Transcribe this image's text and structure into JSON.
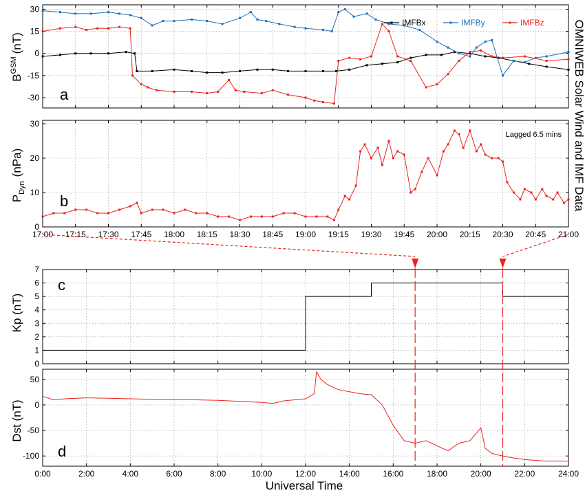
{
  "colors": {
    "black": "#000000",
    "blue": "#1f6fb8",
    "red": "#e8231d",
    "grid": "#9a9a9a"
  },
  "side_title": "OMNIWEB Solar Wind and IMF Data",
  "xlabel_bottom": "Universal Time",
  "chart_data": [
    {
      "panel": "a",
      "type": "line",
      "ylabel_main": "B",
      "ylabel_sup": "GSM",
      "ylabel_unit": "(nT)",
      "xlim": [
        "17:00",
        "21:00"
      ],
      "ylim": [
        -37,
        33
      ],
      "yticks": [
        -30,
        -15,
        0,
        15,
        30
      ],
      "xticks": [
        "17:00",
        "17:15",
        "17:30",
        "17:45",
        "18:00",
        "18:15",
        "18:30",
        "18:45",
        "19:00",
        "19:15",
        "19:30",
        "19:45",
        "20:00",
        "20:15",
        "20:30",
        "20:45",
        "21:00"
      ],
      "grid": true,
      "legend_position": "top-right",
      "series": [
        {
          "name": "IMFBx",
          "color": "#000000",
          "x": [
            "17:00",
            "17:08",
            "17:15",
            "17:22",
            "17:30",
            "17:38",
            "17:42",
            "17:43",
            "17:50",
            "18:00",
            "18:08",
            "18:15",
            "18:22",
            "18:30",
            "18:38",
            "18:45",
            "18:52",
            "19:00",
            "19:08",
            "19:14",
            "19:20",
            "19:28",
            "19:35",
            "19:42",
            "19:48",
            "19:55",
            "20:02",
            "20:08",
            "20:15",
            "20:22",
            "20:28",
            "20:35",
            "20:42",
            "20:50",
            "21:00"
          ],
          "y": [
            -2,
            -1,
            0,
            0,
            0,
            1,
            0,
            -12,
            -12,
            -11,
            -12,
            -13,
            -13,
            -12,
            -11,
            -11,
            -12,
            -12,
            -12,
            -12,
            -11,
            -8,
            -7,
            -6,
            -3,
            -1,
            -1,
            1,
            0,
            -2,
            -3,
            -5,
            -7,
            -9,
            -11
          ]
        },
        {
          "name": "IMFBy",
          "color": "#1f6fb8",
          "x": [
            "17:00",
            "17:08",
            "17:15",
            "17:22",
            "17:30",
            "17:35",
            "17:40",
            "17:45",
            "17:50",
            "17:55",
            "18:00",
            "18:08",
            "18:15",
            "18:22",
            "18:30",
            "18:35",
            "18:38",
            "18:42",
            "18:48",
            "18:55",
            "19:00",
            "19:08",
            "19:12",
            "19:15",
            "19:18",
            "19:22",
            "19:28",
            "19:32",
            "19:38",
            "19:45",
            "19:52",
            "20:00",
            "20:05",
            "20:10",
            "20:15",
            "20:18",
            "20:22",
            "20:25",
            "20:30",
            "20:35",
            "20:40",
            "20:45",
            "20:50",
            "21:00"
          ],
          "y": [
            29,
            28,
            27,
            27,
            28,
            27,
            26,
            24,
            19,
            22,
            22,
            23,
            22,
            20,
            24,
            28,
            23,
            22,
            20,
            18,
            17,
            16,
            15,
            28,
            30,
            25,
            27,
            23,
            20,
            19,
            16,
            8,
            4,
            0,
            -2,
            4,
            8,
            9,
            -15,
            -5,
            -6,
            -3,
            -2,
            1
          ]
        },
        {
          "name": "IMFBz",
          "color": "#e8231d",
          "x": [
            "17:00",
            "17:08",
            "17:15",
            "17:20",
            "17:25",
            "17:30",
            "17:35",
            "17:40",
            "17:41",
            "17:45",
            "17:48",
            "17:52",
            "18:00",
            "18:08",
            "18:15",
            "18:20",
            "18:25",
            "18:28",
            "18:32",
            "18:40",
            "18:45",
            "18:52",
            "19:00",
            "19:04",
            "19:08",
            "19:13",
            "19:15",
            "19:20",
            "19:25",
            "19:30",
            "19:35",
            "19:38",
            "19:42",
            "19:48",
            "19:55",
            "20:00",
            "20:05",
            "20:10",
            "20:15",
            "20:20",
            "20:25",
            "20:30",
            "20:40",
            "20:50",
            "21:00"
          ],
          "y": [
            15,
            17,
            18,
            16,
            17,
            17,
            18,
            17,
            -15,
            -21,
            -23,
            -25,
            -26,
            -26,
            -27,
            -26,
            -18,
            -25,
            -26,
            -27,
            -25,
            -28,
            -30,
            -32,
            -33,
            -34,
            -5,
            -3,
            -4,
            -2,
            20,
            15,
            -2,
            -5,
            -23,
            -21,
            -14,
            -5,
            1,
            2,
            -2,
            -3,
            -2,
            -5,
            -4
          ]
        }
      ]
    },
    {
      "panel": "b",
      "type": "line",
      "ylabel_main": "P",
      "ylabel_sub": "Dyn",
      "ylabel_unit": "(nPa)",
      "annotation": "Lagged 6.5 mins",
      "xlim": [
        "17:00",
        "21:00"
      ],
      "ylim": [
        0,
        31
      ],
      "yticks": [
        0,
        10,
        20,
        30
      ],
      "xticks": [
        "17:00",
        "17:15",
        "17:30",
        "17:45",
        "18:00",
        "18:15",
        "18:30",
        "18:45",
        "19:00",
        "19:15",
        "19:30",
        "19:45",
        "20:00",
        "20:15",
        "20:30",
        "20:45",
        "21:00"
      ],
      "grid": true,
      "series": [
        {
          "name": "",
          "color": "#e8231d",
          "x": [
            "17:00",
            "17:05",
            "17:10",
            "17:15",
            "17:20",
            "17:25",
            "17:30",
            "17:35",
            "17:40",
            "17:43",
            "17:45",
            "17:50",
            "17:55",
            "18:00",
            "18:05",
            "18:10",
            "18:15",
            "18:20",
            "18:25",
            "18:30",
            "18:35",
            "18:40",
            "18:45",
            "18:50",
            "18:55",
            "19:00",
            "19:05",
            "19:10",
            "19:13",
            "19:15",
            "19:18",
            "19:20",
            "19:23",
            "19:25",
            "19:27",
            "19:30",
            "19:33",
            "19:35",
            "19:38",
            "19:40",
            "19:42",
            "19:45",
            "19:48",
            "19:50",
            "19:53",
            "19:56",
            "20:00",
            "20:03",
            "20:05",
            "20:08",
            "20:10",
            "20:12",
            "20:15",
            "20:18",
            "20:20",
            "20:22",
            "20:25",
            "20:28",
            "20:30",
            "20:32",
            "20:35",
            "20:38",
            "20:40",
            "20:43",
            "20:45",
            "20:48",
            "20:50",
            "20:53",
            "20:55",
            "20:58",
            "21:00"
          ],
          "y": [
            3,
            4,
            4,
            5,
            5,
            4,
            4,
            5,
            6,
            7,
            4,
            5,
            5,
            4,
            5,
            4,
            4,
            3,
            3,
            2,
            3,
            3,
            3,
            4,
            4,
            3,
            3,
            3,
            2,
            5,
            9,
            8,
            12,
            22,
            24,
            20,
            23,
            18,
            25,
            20,
            22,
            21,
            10,
            11,
            16,
            20,
            15,
            22,
            24,
            28,
            27,
            23,
            28,
            22,
            24,
            21,
            20,
            20,
            19,
            13,
            10,
            8,
            11,
            10,
            8,
            11,
            9,
            8,
            10,
            7,
            8
          ]
        }
      ]
    },
    {
      "panel": "c",
      "type": "line",
      "ylabel": "Kp (nT)",
      "xlim": [
        0,
        24
      ],
      "ylim": [
        0,
        7
      ],
      "yticks": [
        0,
        1,
        2,
        3,
        4,
        5,
        6,
        7
      ],
      "xticks": [
        "0:00",
        "2:00",
        "4:00",
        "6:00",
        "8:00",
        "10:00",
        "12:00",
        "14:00",
        "16:00",
        "18:00",
        "20:00",
        "22:00",
        "24:00"
      ],
      "grid": true,
      "series": [
        {
          "name": "",
          "color": "#000000",
          "x": [
            0,
            12,
            12,
            15,
            15,
            21,
            21,
            24
          ],
          "y": [
            1,
            1,
            5,
            5,
            6,
            6,
            5,
            5
          ]
        }
      ]
    },
    {
      "panel": "d",
      "type": "line",
      "ylabel": "Dst (nT)",
      "xlim": [
        0,
        24
      ],
      "ylim": [
        -120,
        70
      ],
      "yticks": [
        -100,
        -50,
        0,
        50
      ],
      "xticks": [
        "0:00",
        "2:00",
        "4:00",
        "6:00",
        "8:00",
        "10:00",
        "12:00",
        "14:00",
        "16:00",
        "18:00",
        "20:00",
        "22:00",
        "24:00"
      ],
      "grid": true,
      "series": [
        {
          "name": "",
          "color": "#e8231d",
          "x": [
            0,
            0.5,
            1,
            2,
            3,
            4,
            5,
            6,
            7,
            8,
            9,
            10,
            10.5,
            11,
            12,
            12.4,
            12.5,
            12.7,
            13,
            13.5,
            14,
            14.5,
            15,
            15.5,
            16,
            16.5,
            17,
            17.5,
            18,
            18.5,
            19,
            19.5,
            20,
            20.2,
            20.5,
            21,
            21.5,
            22,
            23,
            24
          ],
          "y": [
            17,
            10,
            12,
            14,
            13,
            12,
            11,
            10,
            10,
            9,
            7,
            5,
            3,
            8,
            12,
            22,
            65,
            50,
            40,
            30,
            26,
            22,
            20,
            0,
            -40,
            -70,
            -75,
            -70,
            -80,
            -90,
            -75,
            -70,
            -45,
            -85,
            -95,
            -100,
            -104,
            -107,
            -110,
            -110
          ]
        }
      ]
    }
  ]
}
